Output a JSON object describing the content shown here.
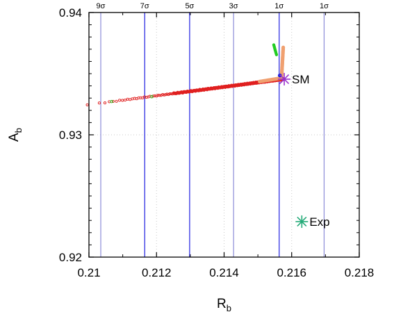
{
  "chart_data": {
    "type": "scatter",
    "xlabel": "R",
    "xlabel_sub": "b",
    "ylabel": "A",
    "ylabel_sub": "b",
    "xlim": [
      0.21,
      0.218
    ],
    "ylim": [
      0.92,
      0.94
    ],
    "x_ticks": [
      0.21,
      0.212,
      0.214,
      0.216,
      0.218
    ],
    "x_tick_labels": [
      "0.21",
      "0.212",
      "0.214",
      "0.216",
      "0.218"
    ],
    "y_ticks": [
      0.92,
      0.93,
      0.94
    ],
    "y_tick_labels": [
      "0.92",
      "0.93",
      "0.94"
    ],
    "grid": true,
    "sigma_lines": [
      {
        "label": "9σ",
        "x": 0.21035,
        "color": "#8c8cd8"
      },
      {
        "label": "7σ",
        "x": 0.21165,
        "color": "#1e1ee0"
      },
      {
        "label": "5σ",
        "x": 0.21298,
        "color": "#1e1ee0"
      },
      {
        "label": "3σ",
        "x": 0.21428,
        "color": "#8c8cd8"
      },
      {
        "label": "1σ",
        "x": 0.21563,
        "color": "#1e1ee0"
      },
      {
        "label": "1σ",
        "x": 0.21696,
        "color": "#8c8cd8"
      }
    ],
    "series": [
      {
        "color": "#e02020",
        "x_range": [
          0.20995,
          0.21575
        ],
        "y_range": [
          0.93245,
          0.93455
        ],
        "description_points": [
          {
            "x": 0.20995,
            "y": 0.93245
          },
          {
            "x": 0.212,
            "y": 0.93315
          },
          {
            "x": 0.214,
            "y": 0.93395
          },
          {
            "x": 0.21575,
            "y": 0.93455
          }
        ]
      },
      {
        "color": "#f0a070",
        "points": [
          {
            "x": 0.21505,
            "y": 0.93435
          },
          {
            "x": 0.2157,
            "y": 0.93465
          },
          {
            "x": 0.21575,
            "y": 0.93715
          }
        ]
      },
      {
        "color": "#22cc22",
        "points": [
          {
            "x": 0.21547,
            "y": 0.93735
          },
          {
            "x": 0.21555,
            "y": 0.93655
          },
          {
            "x": 0.21067,
            "y": 0.93272
          },
          {
            "x": 0.21186,
            "y": 0.93312
          }
        ]
      }
    ],
    "markers": [
      {
        "label": "SM",
        "x": 0.21578,
        "y": 0.93455,
        "color": "#9933cc"
      },
      {
        "label": "Exp",
        "x": 0.2163,
        "y": 0.9229,
        "color": "#22aa77"
      }
    ]
  }
}
